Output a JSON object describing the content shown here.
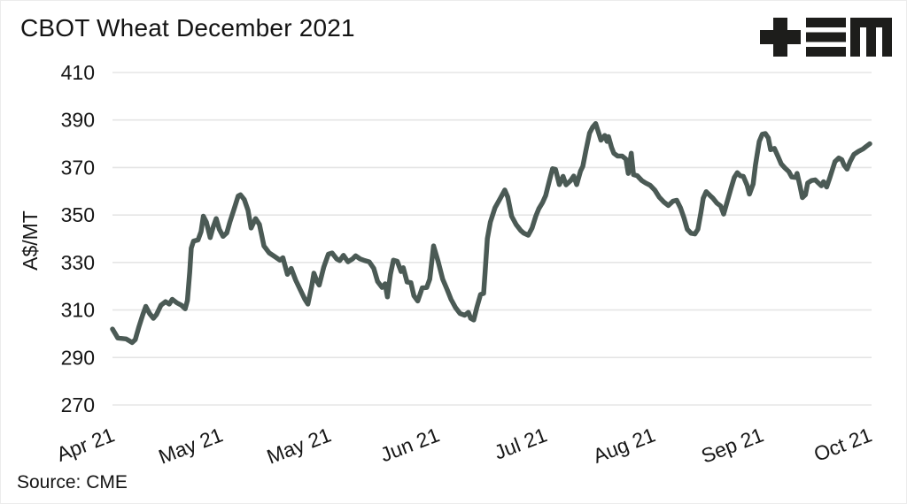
{
  "chart_data": {
    "type": "line",
    "title": "CBOT Wheat December 2021",
    "xlabel": "",
    "ylabel": "A$/MT",
    "source": "Source: CME",
    "legend": "none",
    "grid": "horizontal",
    "ylim": [
      270,
      410
    ],
    "y_ticks": [
      410,
      390,
      370,
      350,
      330,
      310,
      290,
      270
    ],
    "x_ticks": [
      {
        "label": "Apr 21",
        "f": 0.0
      },
      {
        "label": "May 21",
        "f": 0.143
      },
      {
        "label": "May 21",
        "f": 0.286
      },
      {
        "label": "Jun 21",
        "f": 0.429
      },
      {
        "label": "Jul 21",
        "f": 0.571
      },
      {
        "label": "Aug 21",
        "f": 0.714
      },
      {
        "label": "Sep 21",
        "f": 0.857
      },
      {
        "label": "Oct 21",
        "f": 1.0
      }
    ],
    "colors": {
      "line": "#4b5a55",
      "grid": "#e5e5e5",
      "text": "#161616",
      "logo": "#1d1d1b",
      "background": "#ffffff"
    },
    "series": [
      {
        "name": "CBOT Wheat December 2021 (A$/MT)",
        "points": [
          [
            0.0,
            302
          ],
          [
            0.007,
            298.2
          ],
          [
            0.018,
            297.8
          ],
          [
            0.026,
            296.3
          ],
          [
            0.03,
            297.5
          ],
          [
            0.035,
            303
          ],
          [
            0.04,
            308
          ],
          [
            0.044,
            311.5
          ],
          [
            0.049,
            308.5
          ],
          [
            0.054,
            306.5
          ],
          [
            0.058,
            308
          ],
          [
            0.064,
            312
          ],
          [
            0.07,
            313.5
          ],
          [
            0.075,
            312.5
          ],
          [
            0.079,
            314.5
          ],
          [
            0.085,
            313
          ],
          [
            0.091,
            312
          ],
          [
            0.096,
            310.5
          ],
          [
            0.099,
            314
          ],
          [
            0.102,
            326
          ],
          [
            0.104,
            336
          ],
          [
            0.107,
            339
          ],
          [
            0.113,
            339.5
          ],
          [
            0.117,
            343
          ],
          [
            0.12,
            349.5
          ],
          [
            0.124,
            347
          ],
          [
            0.129,
            340.5
          ],
          [
            0.133,
            345
          ],
          [
            0.137,
            348.5
          ],
          [
            0.141,
            344
          ],
          [
            0.146,
            341
          ],
          [
            0.151,
            342.5
          ],
          [
            0.155,
            347
          ],
          [
            0.161,
            353
          ],
          [
            0.166,
            358
          ],
          [
            0.169,
            358.5
          ],
          [
            0.174,
            356.5
          ],
          [
            0.179,
            352
          ],
          [
            0.183,
            344.5
          ],
          [
            0.189,
            348.5
          ],
          [
            0.194,
            346
          ],
          [
            0.2,
            337
          ],
          [
            0.207,
            334
          ],
          [
            0.214,
            332.5
          ],
          [
            0.221,
            331
          ],
          [
            0.225,
            332
          ],
          [
            0.231,
            325
          ],
          [
            0.236,
            327.5
          ],
          [
            0.242,
            322.5
          ],
          [
            0.248,
            318.5
          ],
          [
            0.254,
            314.5
          ],
          [
            0.258,
            312.5
          ],
          [
            0.263,
            320
          ],
          [
            0.266,
            325.5
          ],
          [
            0.27,
            322
          ],
          [
            0.273,
            320.5
          ],
          [
            0.279,
            328
          ],
          [
            0.285,
            333.5
          ],
          [
            0.29,
            334
          ],
          [
            0.296,
            331.5
          ],
          [
            0.3,
            330.8
          ],
          [
            0.305,
            333
          ],
          [
            0.311,
            330.3
          ],
          [
            0.317,
            331.5
          ],
          [
            0.321,
            332.8
          ],
          [
            0.327,
            331.5
          ],
          [
            0.333,
            330.8
          ],
          [
            0.339,
            330.3
          ],
          [
            0.345,
            327.5
          ],
          [
            0.35,
            322
          ],
          [
            0.356,
            319.5
          ],
          [
            0.36,
            321
          ],
          [
            0.363,
            315.5
          ],
          [
            0.367,
            325
          ],
          [
            0.371,
            331
          ],
          [
            0.376,
            330.5
          ],
          [
            0.381,
            326.2
          ],
          [
            0.384,
            327.8
          ],
          [
            0.389,
            321.8
          ],
          [
            0.394,
            321.5
          ],
          [
            0.398,
            316
          ],
          [
            0.403,
            313.8
          ],
          [
            0.409,
            319.3
          ],
          [
            0.415,
            319.5
          ],
          [
            0.419,
            323
          ],
          [
            0.424,
            337
          ],
          [
            0.43,
            330.5
          ],
          [
            0.436,
            323
          ],
          [
            0.442,
            318.5
          ],
          [
            0.447,
            314.5
          ],
          [
            0.453,
            311
          ],
          [
            0.459,
            308.5
          ],
          [
            0.465,
            307.8
          ],
          [
            0.47,
            309
          ],
          [
            0.473,
            306.5
          ],
          [
            0.477,
            305.8
          ],
          [
            0.481,
            311
          ],
          [
            0.486,
            316.5
          ],
          [
            0.49,
            317
          ],
          [
            0.492,
            326
          ],
          [
            0.495,
            340
          ],
          [
            0.499,
            347
          ],
          [
            0.505,
            353
          ],
          [
            0.512,
            357
          ],
          [
            0.518,
            360.5
          ],
          [
            0.522,
            357.5
          ],
          [
            0.527,
            349.5
          ],
          [
            0.533,
            346
          ],
          [
            0.539,
            343.5
          ],
          [
            0.543,
            342.4
          ],
          [
            0.549,
            341.5
          ],
          [
            0.554,
            344.5
          ],
          [
            0.559,
            349.5
          ],
          [
            0.563,
            352.7
          ],
          [
            0.568,
            355.3
          ],
          [
            0.572,
            358.2
          ],
          [
            0.577,
            364.5
          ],
          [
            0.581,
            369.5
          ],
          [
            0.585,
            369.2
          ],
          [
            0.59,
            362.8
          ],
          [
            0.595,
            366.3
          ],
          [
            0.599,
            362.7
          ],
          [
            0.605,
            364.5
          ],
          [
            0.609,
            366.4
          ],
          [
            0.613,
            362.8
          ],
          [
            0.618,
            368.5
          ],
          [
            0.621,
            370.5
          ],
          [
            0.625,
            377
          ],
          [
            0.63,
            384.5
          ],
          [
            0.634,
            387
          ],
          [
            0.638,
            388.5
          ],
          [
            0.641,
            385.5
          ],
          [
            0.645,
            381.5
          ],
          [
            0.65,
            383.5
          ],
          [
            0.653,
            381
          ],
          [
            0.655,
            383
          ],
          [
            0.659,
            378.5
          ],
          [
            0.662,
            376
          ],
          [
            0.667,
            374.8
          ],
          [
            0.673,
            374.8
          ],
          [
            0.678,
            373.5
          ],
          [
            0.681,
            367.5
          ],
          [
            0.685,
            376
          ],
          [
            0.688,
            367
          ],
          [
            0.693,
            366.5
          ],
          [
            0.699,
            364.5
          ],
          [
            0.704,
            363.5
          ],
          [
            0.71,
            362.5
          ],
          [
            0.716,
            360.5
          ],
          [
            0.722,
            357.5
          ],
          [
            0.728,
            355.5
          ],
          [
            0.734,
            354
          ],
          [
            0.74,
            355.8
          ],
          [
            0.745,
            356.2
          ],
          [
            0.75,
            353
          ],
          [
            0.755,
            348.5
          ],
          [
            0.759,
            344
          ],
          [
            0.764,
            342.3
          ],
          [
            0.769,
            342
          ],
          [
            0.773,
            344
          ],
          [
            0.777,
            351
          ],
          [
            0.78,
            357
          ],
          [
            0.784,
            359.8
          ],
          [
            0.789,
            358.2
          ],
          [
            0.793,
            357
          ],
          [
            0.798,
            355
          ],
          [
            0.803,
            353.8
          ],
          [
            0.807,
            350.4
          ],
          [
            0.812,
            356
          ],
          [
            0.817,
            361.5
          ],
          [
            0.821,
            365.8
          ],
          [
            0.825,
            367.8
          ],
          [
            0.829,
            366.5
          ],
          [
            0.833,
            366.3
          ],
          [
            0.838,
            362.5
          ],
          [
            0.841,
            358.8
          ],
          [
            0.846,
            363
          ],
          [
            0.849,
            371
          ],
          [
            0.854,
            381
          ],
          [
            0.858,
            384
          ],
          [
            0.862,
            384.3
          ],
          [
            0.866,
            382.5
          ],
          [
            0.869,
            377.5
          ],
          [
            0.874,
            378
          ],
          [
            0.879,
            374.5
          ],
          [
            0.883,
            371.5
          ],
          [
            0.888,
            369.8
          ],
          [
            0.893,
            368.3
          ],
          [
            0.897,
            366
          ],
          [
            0.902,
            365.8
          ],
          [
            0.904,
            367.5
          ],
          [
            0.908,
            362
          ],
          [
            0.911,
            357.3
          ],
          [
            0.915,
            358.5
          ],
          [
            0.918,
            363.5
          ],
          [
            0.923,
            364.5
          ],
          [
            0.928,
            364.8
          ],
          [
            0.932,
            363.5
          ],
          [
            0.936,
            362.3
          ],
          [
            0.939,
            364
          ],
          [
            0.943,
            361.8
          ],
          [
            0.947,
            365.5
          ],
          [
            0.951,
            369.5
          ],
          [
            0.954,
            372.5
          ],
          [
            0.959,
            374
          ],
          [
            0.963,
            373.3
          ],
          [
            0.966,
            371
          ],
          [
            0.97,
            369.3
          ],
          [
            0.974,
            372.5
          ],
          [
            0.979,
            375.5
          ],
          [
            0.985,
            376.8
          ],
          [
            0.991,
            377.8
          ],
          [
            0.995,
            378.8
          ],
          [
            1.0,
            380
          ]
        ]
      }
    ]
  }
}
